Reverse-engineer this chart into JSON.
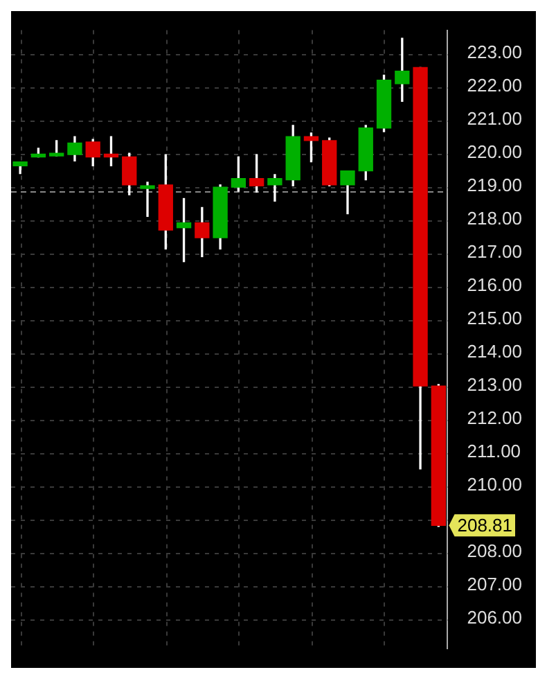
{
  "chart_data": {
    "type": "candlestick",
    "categories": [
      null,
      null,
      null,
      null,
      null,
      null,
      null,
      null,
      null,
      null,
      null,
      null,
      null,
      null,
      null,
      null,
      null,
      null,
      null,
      null,
      null,
      null,
      null,
      null
    ],
    "ohlc": [
      [
        219.62,
        219.74,
        219.39,
        219.74
      ],
      [
        219.89,
        220.15,
        219.89,
        219.96
      ],
      [
        219.92,
        220.38,
        219.92,
        220.0
      ],
      [
        219.96,
        220.5,
        219.77,
        220.31
      ],
      [
        220.34,
        220.42,
        219.62,
        219.89
      ],
      [
        219.96,
        220.5,
        219.62,
        219.89
      ],
      [
        219.89,
        220.0,
        218.75,
        219.05
      ],
      [
        218.94,
        219.13,
        218.1,
        219.02
      ],
      [
        219.05,
        219.96,
        217.12,
        217.69
      ],
      [
        217.76,
        218.64,
        216.74,
        217.91
      ],
      [
        217.91,
        218.37,
        216.89,
        217.46
      ],
      [
        217.46,
        219.05,
        217.12,
        218.98
      ],
      [
        218.98,
        219.89,
        218.86,
        219.24
      ],
      [
        219.24,
        219.96,
        218.83,
        219.02
      ],
      [
        219.05,
        219.36,
        218.56,
        219.24
      ],
      [
        219.2,
        220.84,
        219.02,
        220.5
      ],
      [
        220.5,
        220.61,
        219.74,
        220.38
      ],
      [
        220.38,
        220.46,
        219.02,
        219.05
      ],
      [
        219.05,
        219.47,
        218.18,
        219.47
      ],
      [
        219.47,
        220.84,
        219.2,
        220.76
      ],
      [
        220.76,
        222.35,
        220.65,
        222.2
      ],
      [
        222.09,
        223.46,
        221.56,
        222.47
      ],
      [
        222.58,
        222.58,
        210.51,
        213.0
      ],
      [
        213.0,
        213.05,
        208.78,
        208.81
      ]
    ],
    "colors": [
      "#00b000",
      "#00b000",
      "#00b000",
      "#00b000",
      "#dd0000",
      "#dd0000",
      "#dd0000",
      "#00b000",
      "#dd0000",
      "#00b000",
      "#dd0000",
      "#00b000",
      "#00b000",
      "#dd0000",
      "#00b000",
      "#00b000",
      "#dd0000",
      "#dd0000",
      "#00b000",
      "#00b000",
      "#00b000",
      "#00b000",
      "#dd0000",
      "#dd0000"
    ],
    "ylim": [
      205.1,
      223.7
    ],
    "yticks": [
      {
        "value": 206,
        "label": "206.00"
      },
      {
        "value": 207,
        "label": "207.00"
      },
      {
        "value": 208,
        "label": "208.00"
      },
      {
        "value": 209,
        "label": null
      },
      {
        "value": 210,
        "label": "210.00"
      },
      {
        "value": 211,
        "label": "211.00"
      },
      {
        "value": 212,
        "label": "212.00"
      },
      {
        "value": 213,
        "label": "213.00"
      },
      {
        "value": 214,
        "label": "214.00"
      },
      {
        "value": 215,
        "label": "215.00"
      },
      {
        "value": 216,
        "label": "216.00"
      },
      {
        "value": 217,
        "label": "217.00"
      },
      {
        "value": 218,
        "label": "218.00"
      },
      {
        "value": 219,
        "label": "219.00"
      },
      {
        "value": 220,
        "label": "220.00"
      },
      {
        "value": 221,
        "label": "221.00"
      },
      {
        "value": 222,
        "label": "222.00"
      },
      {
        "value": 223,
        "label": "223.00"
      }
    ],
    "ref_lines": [
      {
        "axis": "y",
        "value": 218.86,
        "color": "#888888",
        "line_style": "dashed"
      }
    ],
    "annotations": [
      "208.81"
    ],
    "grid": true,
    "tick_labels": "y"
  }
}
